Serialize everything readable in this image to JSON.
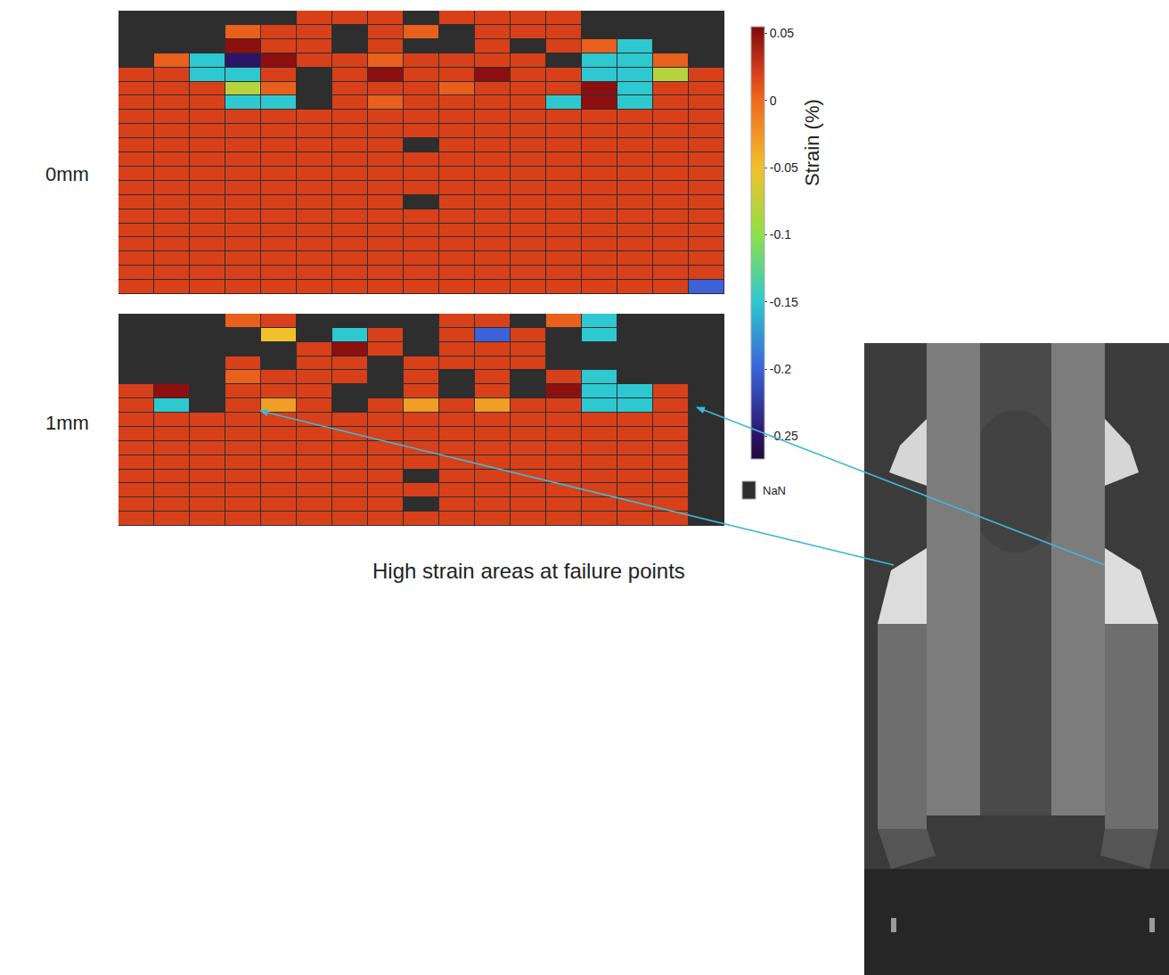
{
  "chart_data": [
    {
      "type": "heatmap",
      "title": "0mm",
      "tick_labels": false,
      "cells": [
        [
          null,
          null,
          null,
          null,
          null,
          0.02,
          0.02,
          0.02,
          null,
          0.02,
          0.02,
          0.02,
          0.02,
          null,
          null,
          null,
          null
        ],
        [
          null,
          null,
          null,
          0.005,
          0.02,
          0.02,
          null,
          0.02,
          0.005,
          null,
          0.02,
          0.02,
          0.02,
          null,
          null,
          null,
          null
        ],
        [
          null,
          null,
          null,
          0.05,
          0.02,
          0.02,
          null,
          0.02,
          null,
          null,
          0.02,
          null,
          0.02,
          0.005,
          -0.15,
          null,
          null
        ],
        [
          null,
          0.005,
          -0.15,
          -0.25,
          0.05,
          0.02,
          0.02,
          0.005,
          0.02,
          0.02,
          0.02,
          0.02,
          null,
          -0.15,
          -0.15,
          0.005,
          null
        ],
        [
          0.02,
          0.02,
          -0.15,
          -0.15,
          0.02,
          null,
          0.02,
          0.05,
          0.02,
          0.02,
          0.05,
          0.02,
          0.02,
          -0.15,
          -0.15,
          -0.08,
          0.02
        ],
        [
          0.02,
          0.02,
          0.02,
          -0.08,
          0.005,
          null,
          0.02,
          0.02,
          0.02,
          0.005,
          0.02,
          0.02,
          0.02,
          0.05,
          -0.15,
          0.02,
          0.02
        ],
        [
          0.02,
          0.02,
          0.02,
          -0.15,
          -0.15,
          null,
          0.02,
          0.005,
          0.02,
          0.02,
          0.02,
          0.02,
          -0.15,
          0.05,
          -0.15,
          0.02,
          0.02
        ],
        [
          0.02,
          0.02,
          0.02,
          0.02,
          0.02,
          0.02,
          0.02,
          0.02,
          0.02,
          0.02,
          0.02,
          0.02,
          0.02,
          0.02,
          0.02,
          0.02,
          0.02
        ],
        [
          0.02,
          0.02,
          0.02,
          0.02,
          0.02,
          0.02,
          0.02,
          0.02,
          0.02,
          0.02,
          0.02,
          0.02,
          0.02,
          0.02,
          0.02,
          0.02,
          0.02
        ],
        [
          0.02,
          0.02,
          0.02,
          0.02,
          0.02,
          0.02,
          0.02,
          0.02,
          null,
          0.02,
          0.02,
          0.02,
          0.02,
          0.02,
          0.02,
          0.02,
          0.02
        ],
        [
          0.02,
          0.02,
          0.02,
          0.02,
          0.02,
          0.02,
          0.02,
          0.02,
          0.02,
          0.02,
          0.02,
          0.02,
          0.02,
          0.02,
          0.02,
          0.02,
          0.02
        ],
        [
          0.02,
          0.02,
          0.02,
          0.02,
          0.02,
          0.02,
          0.02,
          0.02,
          0.02,
          0.02,
          0.02,
          0.02,
          0.02,
          0.02,
          0.02,
          0.02,
          0.02
        ],
        [
          0.02,
          0.02,
          0.02,
          0.02,
          0.02,
          0.02,
          0.02,
          0.02,
          0.02,
          0.02,
          0.02,
          0.02,
          0.02,
          0.02,
          0.02,
          0.02,
          0.02
        ],
        [
          0.02,
          0.02,
          0.02,
          0.02,
          0.02,
          0.02,
          0.02,
          0.02,
          null,
          0.02,
          0.02,
          0.02,
          0.02,
          0.02,
          0.02,
          0.02,
          0.02
        ],
        [
          0.02,
          0.02,
          0.02,
          0.02,
          0.02,
          0.02,
          0.02,
          0.02,
          0.02,
          0.02,
          0.02,
          0.02,
          0.02,
          0.02,
          0.02,
          0.02,
          0.02
        ],
        [
          0.02,
          0.02,
          0.02,
          0.02,
          0.02,
          0.02,
          0.02,
          0.02,
          0.02,
          0.02,
          0.02,
          0.02,
          0.02,
          0.02,
          0.02,
          0.02,
          0.02
        ],
        [
          0.02,
          0.02,
          0.02,
          0.02,
          0.02,
          0.02,
          0.02,
          0.02,
          0.02,
          0.02,
          0.02,
          0.02,
          0.02,
          0.02,
          0.02,
          0.02,
          0.02
        ],
        [
          0.02,
          0.02,
          0.02,
          0.02,
          0.02,
          0.02,
          0.02,
          0.02,
          0.02,
          0.02,
          0.02,
          0.02,
          0.02,
          0.02,
          0.02,
          0.02,
          0.02
        ],
        [
          0.02,
          0.02,
          0.02,
          0.02,
          0.02,
          0.02,
          0.02,
          0.02,
          0.02,
          0.02,
          0.02,
          0.02,
          0.02,
          0.02,
          0.02,
          0.02,
          0.02
        ],
        [
          0.02,
          0.02,
          0.02,
          0.02,
          0.02,
          0.02,
          0.02,
          0.02,
          0.02,
          0.02,
          0.02,
          0.02,
          0.02,
          0.02,
          0.02,
          0.02,
          -0.2
        ]
      ]
    },
    {
      "type": "heatmap",
      "title": "1mm",
      "tick_labels": false,
      "cells": [
        [
          null,
          null,
          null,
          0.005,
          0.02,
          null,
          null,
          null,
          null,
          0.02,
          0.02,
          null,
          0.005,
          -0.15,
          null,
          null,
          null
        ],
        [
          null,
          null,
          null,
          null,
          -0.05,
          null,
          -0.15,
          0.02,
          null,
          0.02,
          -0.2,
          0.02,
          null,
          -0.15,
          null,
          null,
          null
        ],
        [
          null,
          null,
          null,
          null,
          null,
          0.02,
          0.05,
          0.02,
          null,
          0.02,
          0.02,
          0.02,
          null,
          null,
          null,
          null,
          null
        ],
        [
          null,
          null,
          null,
          0.02,
          null,
          0.02,
          0.02,
          null,
          0.02,
          0.02,
          0.02,
          0.02,
          null,
          null,
          null,
          null,
          null
        ],
        [
          null,
          null,
          null,
          0.005,
          0.02,
          0.02,
          0.02,
          null,
          0.02,
          null,
          0.02,
          null,
          0.02,
          -0.15,
          null,
          null,
          null
        ],
        [
          0.02,
          0.05,
          null,
          0.02,
          0.02,
          0.02,
          null,
          null,
          0.02,
          null,
          0.02,
          null,
          0.05,
          -0.15,
          -0.15,
          0.02,
          null
        ],
        [
          0.02,
          -0.15,
          null,
          0.02,
          -0.03,
          0.02,
          null,
          0.02,
          -0.03,
          0.02,
          -0.03,
          0.02,
          0.02,
          -0.15,
          -0.15,
          0.02,
          null
        ],
        [
          0.02,
          0.02,
          0.02,
          0.02,
          0.02,
          0.02,
          0.02,
          0.02,
          0.02,
          0.02,
          0.02,
          0.02,
          0.02,
          0.02,
          0.02,
          0.02,
          null
        ],
        [
          0.02,
          0.02,
          0.02,
          0.02,
          0.02,
          0.02,
          0.02,
          0.02,
          0.02,
          0.02,
          0.02,
          0.02,
          0.02,
          0.02,
          0.02,
          0.02,
          null
        ],
        [
          0.02,
          0.02,
          0.02,
          0.02,
          0.02,
          0.02,
          0.02,
          0.02,
          0.02,
          0.02,
          0.02,
          0.02,
          0.02,
          0.02,
          0.02,
          0.02,
          null
        ],
        [
          0.02,
          0.02,
          0.02,
          0.02,
          0.02,
          0.02,
          0.02,
          0.02,
          0.02,
          0.02,
          0.02,
          0.02,
          0.02,
          0.02,
          0.02,
          0.02,
          null
        ],
        [
          0.02,
          0.02,
          0.02,
          0.02,
          0.02,
          0.02,
          0.02,
          0.02,
          null,
          0.02,
          0.02,
          0.02,
          0.02,
          0.02,
          0.02,
          0.02,
          null
        ],
        [
          0.02,
          0.02,
          0.02,
          0.02,
          0.02,
          0.02,
          0.02,
          0.02,
          0.02,
          0.02,
          0.02,
          0.02,
          0.02,
          0.02,
          0.02,
          0.02,
          null
        ],
        [
          0.02,
          0.02,
          0.02,
          0.02,
          0.02,
          0.02,
          0.02,
          0.02,
          null,
          0.02,
          0.02,
          0.02,
          0.02,
          0.02,
          0.02,
          0.02,
          null
        ],
        [
          0.02,
          0.02,
          0.02,
          0.02,
          0.02,
          0.02,
          0.02,
          0.02,
          0.02,
          0.02,
          0.02,
          0.02,
          0.02,
          0.02,
          0.02,
          0.02,
          null
        ]
      ]
    }
  ],
  "colorbar": {
    "title": "Strain (%)",
    "range": [
      -0.267,
      0.055
    ],
    "ticks": [
      0.05,
      0,
      -0.05,
      -0.1,
      -0.15,
      -0.2,
      -0.25
    ],
    "nan_label": "NaN"
  },
  "annotation": "High strain areas at failure points"
}
